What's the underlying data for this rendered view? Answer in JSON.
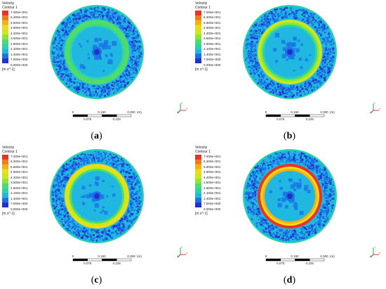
{
  "legend": {
    "title": "Velocity",
    "subtitle": "Contour 1",
    "unit": "[m s^-1]",
    "ticks": [
      "7.000e+001",
      "6.300e+001",
      "5.600e+001",
      "4.900e+001",
      "4.200e+001",
      "3.500e+001",
      "2.800e+001",
      "2.100e+001",
      "1.400e+001",
      "7.000e+000",
      "0.000e+000"
    ],
    "colors": [
      "#e8322a",
      "#f07a1e",
      "#f5b016",
      "#eedd16",
      "#c9e81e",
      "#8fe43a",
      "#4fdc6a",
      "#2ed3a6",
      "#20b8e0",
      "#1d72e8",
      "#2033c8"
    ]
  },
  "scale_bar": {
    "top_labels": [
      "0",
      "0.150",
      "0.300",
      "(m)"
    ],
    "bottom_labels": [
      "0.075",
      "0.225"
    ]
  },
  "axes": {
    "y": "Y",
    "x": "X",
    "z": "Z"
  },
  "panels": [
    {
      "label": "a",
      "ring_color": "#4fdc6a",
      "ring_inner": "#2ed3a6",
      "bright_ring": "#4fdc6a"
    },
    {
      "label": "b",
      "ring_color": "#c9e81e",
      "ring_inner": "#2ed3a6",
      "bright_ring": "#8fe43a"
    },
    {
      "label": "c",
      "ring_color": "#eedd16",
      "ring_inner": "#4fdc6a",
      "bright_ring": "#c9e81e"
    },
    {
      "label": "d",
      "ring_color": "#e8322a",
      "ring_inner": "#f5b016",
      "bright_ring": "#eedd16"
    }
  ]
}
